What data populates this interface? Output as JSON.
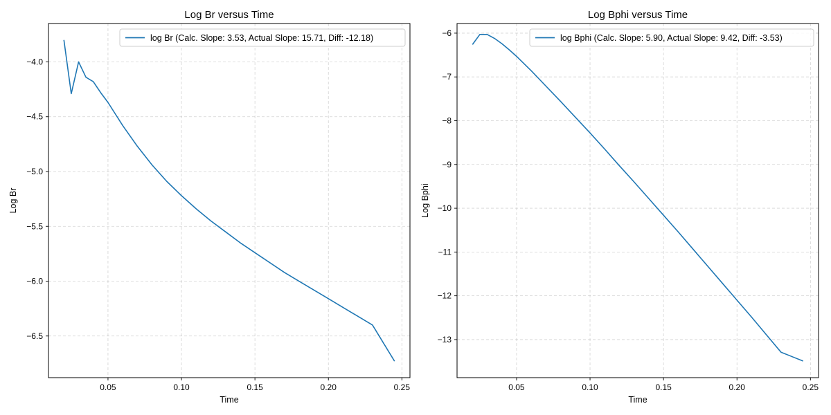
{
  "colors": {
    "series": "#1f77b4",
    "grid": "#b0b0b0",
    "axes": "#000000"
  },
  "chart_data": [
    {
      "type": "line",
      "title": "Log Br versus Time",
      "xlabel": "Time",
      "ylabel": "Log Br",
      "xlim": [
        0.0095,
        0.2555
      ],
      "ylim": [
        -6.88,
        -3.65
      ],
      "xticks": [
        0.05,
        0.1,
        0.15,
        0.2,
        0.25
      ],
      "xtick_labels": [
        "0.05",
        "0.10",
        "0.15",
        "0.20",
        "0.25"
      ],
      "yticks": [
        -6.5,
        -6.0,
        -5.5,
        -5.0,
        -4.5,
        -4.0
      ],
      "ytick_labels": [
        "−6.5",
        "−6.0",
        "−5.5",
        "−5.0",
        "−4.5",
        "−4.0"
      ],
      "grid": true,
      "legend_position": "upper-right",
      "series": [
        {
          "name": "log Br (Calc. Slope: 3.53, Actual Slope: 15.71, Diff: -12.18)",
          "color": "#1f77b4",
          "x": [
            0.02,
            0.025,
            0.03,
            0.035,
            0.04,
            0.045,
            0.05,
            0.06,
            0.07,
            0.08,
            0.09,
            0.1,
            0.11,
            0.12,
            0.13,
            0.14,
            0.15,
            0.16,
            0.17,
            0.18,
            0.19,
            0.2,
            0.21,
            0.22,
            0.23,
            0.245
          ],
          "y": [
            -3.8,
            -4.29,
            -4.0,
            -4.14,
            -4.18,
            -4.28,
            -4.37,
            -4.58,
            -4.77,
            -4.94,
            -5.09,
            -5.22,
            -5.34,
            -5.45,
            -5.55,
            -5.65,
            -5.74,
            -5.83,
            -5.92,
            -6.0,
            -6.08,
            -6.16,
            -6.24,
            -6.32,
            -6.4,
            -6.73
          ]
        }
      ]
    },
    {
      "type": "line",
      "title": "Log Bphi versus Time",
      "xlabel": "Time",
      "ylabel": "Log Bphi",
      "xlim": [
        0.0095,
        0.2555
      ],
      "ylim": [
        -13.87,
        -5.78
      ],
      "xticks": [
        0.05,
        0.1,
        0.15,
        0.2,
        0.25
      ],
      "xtick_labels": [
        "0.05",
        "0.10",
        "0.15",
        "0.20",
        "0.25"
      ],
      "yticks": [
        -13,
        -12,
        -11,
        -10,
        -9,
        -8,
        -7,
        -6
      ],
      "ytick_labels": [
        "−13",
        "−12",
        "−11",
        "−10",
        "−9",
        "−8",
        "−7",
        "−6"
      ],
      "grid": true,
      "legend_position": "upper-right",
      "series": [
        {
          "name": "log Bphi (Calc. Slope: 5.90, Actual Slope: 9.42, Diff: -3.53)",
          "color": "#1f77b4",
          "x": [
            0.02,
            0.025,
            0.03,
            0.035,
            0.04,
            0.045,
            0.05,
            0.06,
            0.07,
            0.08,
            0.09,
            0.1,
            0.11,
            0.12,
            0.13,
            0.14,
            0.15,
            0.16,
            0.17,
            0.18,
            0.19,
            0.2,
            0.21,
            0.22,
            0.23,
            0.245
          ],
          "y": [
            -6.26,
            -6.03,
            -6.03,
            -6.12,
            -6.24,
            -6.38,
            -6.53,
            -6.86,
            -7.21,
            -7.56,
            -7.92,
            -8.28,
            -8.65,
            -9.03,
            -9.4,
            -9.78,
            -10.16,
            -10.54,
            -10.93,
            -11.32,
            -11.71,
            -12.1,
            -12.49,
            -12.89,
            -13.29,
            -13.49
          ]
        }
      ]
    }
  ]
}
